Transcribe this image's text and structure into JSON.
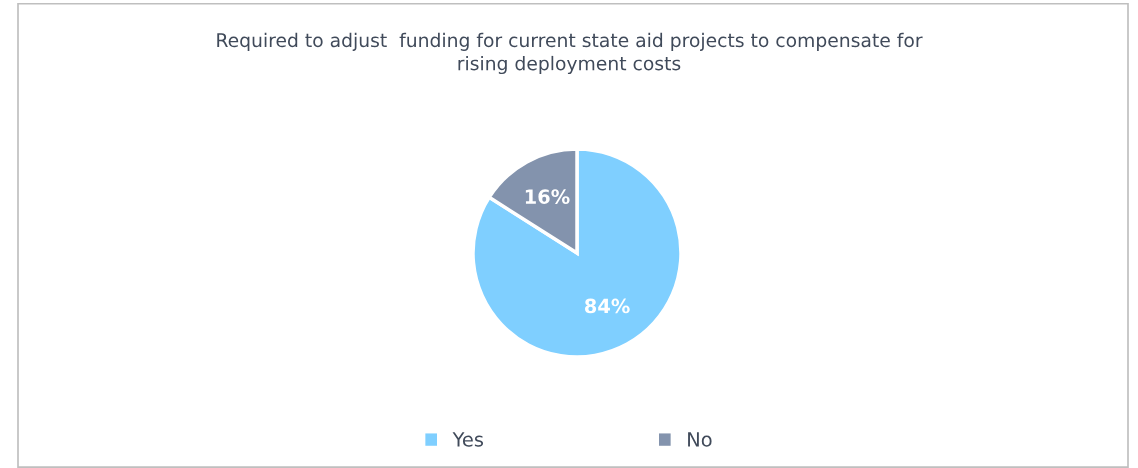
{
  "chart_data": {
    "type": "pie",
    "title": "Required to adjust  funding for current state aid projects to compensate for\nrising deployment costs",
    "categories": [
      "Yes",
      "No"
    ],
    "values": [
      84,
      16
    ],
    "colors": [
      "#7fcfff",
      "#8393ad"
    ],
    "value_labels": [
      "84%",
      "16%"
    ],
    "legend": "bottom"
  }
}
